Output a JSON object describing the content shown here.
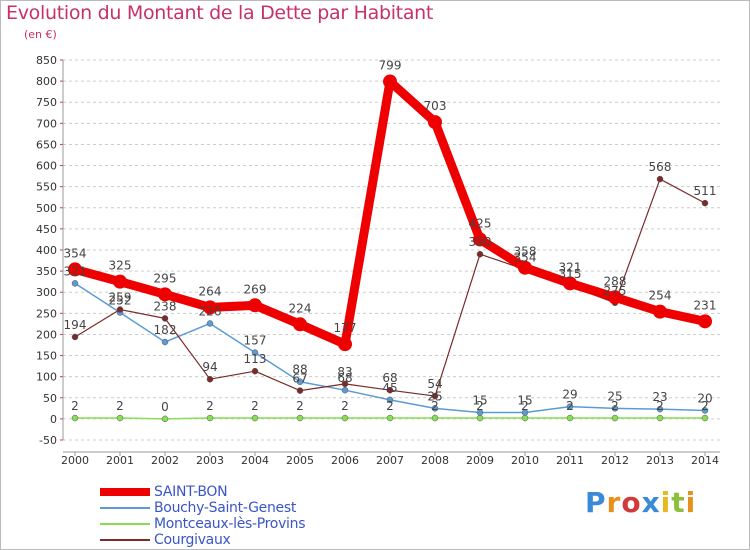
{
  "page": {
    "title": "Evolution du Montant de la Dette par Habitant",
    "subtitle": "(en €)",
    "brand": "Proxiti"
  },
  "colors": {
    "title": "#c8306a",
    "legend_text": "#3a55c8",
    "grid": "#cccccc"
  },
  "chart_data": {
    "type": "line",
    "title": "Evolution du Montant de la Dette par Habitant",
    "subtitle": "(en €)",
    "x": [
      "2000",
      "2001",
      "2002",
      "2003",
      "2004",
      "2005",
      "2006",
      "2007",
      "2008",
      "2009",
      "2010",
      "2011",
      "2012",
      "2013",
      "2014"
    ],
    "ylim": [
      -50,
      850
    ],
    "yticks": [
      -50,
      0,
      50,
      100,
      150,
      200,
      250,
      300,
      350,
      400,
      450,
      500,
      550,
      600,
      650,
      700,
      750,
      800,
      850
    ],
    "grid": "dashed horizontal",
    "legend_position": "bottom-left",
    "series": [
      {
        "name": "SAINT-BON",
        "color": "#ee0000",
        "values": [
          354,
          325,
          295,
          264,
          269,
          224,
          177,
          799,
          703,
          425,
          358,
          321,
          288,
          254,
          231
        ],
        "labels": [
          "354",
          "325",
          "295",
          "264",
          "269",
          "224",
          "177",
          "799",
          "703",
          "425",
          "358",
          "321",
          "288",
          "254",
          "231"
        ]
      },
      {
        "name": "Bouchy-Saint-Genest",
        "color": "#5b9bd5",
        "values": [
          321,
          252,
          182,
          226,
          157,
          88,
          68,
          45,
          25,
          15,
          15,
          29,
          25,
          23,
          20
        ],
        "labels": [
          "321",
          "252",
          "182",
          "226",
          "157",
          "88",
          "68",
          "45",
          "25",
          "15",
          "15",
          "29",
          "25",
          "23",
          "20"
        ]
      },
      {
        "name": "Montceaux-lès-Provins",
        "color": "#88dd55",
        "values": [
          2,
          2,
          0,
          2,
          2,
          2,
          2,
          2,
          2,
          2,
          2,
          2,
          2,
          2,
          2
        ],
        "labels": [
          "2",
          "2",
          "0",
          "2",
          "2",
          "2",
          "2",
          "2",
          "2",
          "2",
          "2",
          "2",
          "2",
          "2",
          "2"
        ]
      },
      {
        "name": "Courgivaux",
        "color": "#7a2a2a",
        "values": [
          194,
          259,
          238,
          94,
          113,
          67,
          83,
          68,
          54,
          390,
          354,
          315,
          275,
          568,
          511
        ],
        "labels": [
          "194",
          "259",
          "238",
          "94",
          "113",
          "67",
          "83",
          "68",
          "54",
          "390",
          "354",
          "315",
          "275",
          "568",
          "511"
        ]
      }
    ]
  }
}
